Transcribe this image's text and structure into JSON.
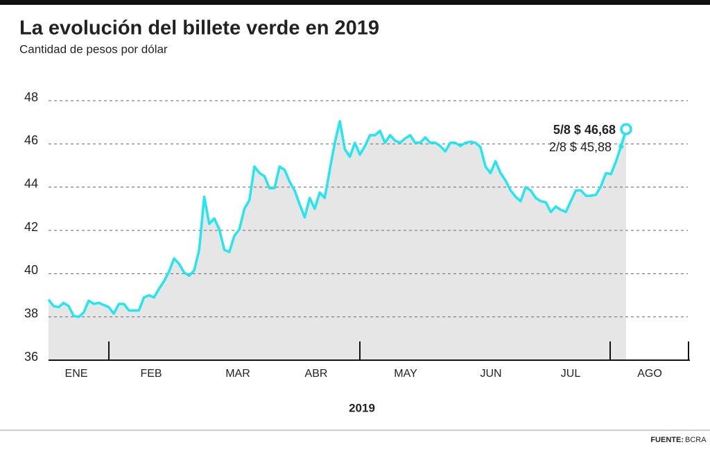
{
  "chart_data": {
    "type": "area-line",
    "title": "La evolución del billete verde en 2019",
    "subtitle": "Cantidad de pesos por dólar",
    "xlabel": "2019",
    "month_labels": [
      "ENE",
      "FEB",
      "MAR",
      "ABR",
      "MAY",
      "JUN",
      "JUL",
      "AGO"
    ],
    "color": "#22e6f0",
    "area_color": "#e6e6e6",
    "ylim": [
      36,
      48
    ],
    "yticks": [
      36,
      38,
      40,
      42,
      44,
      46,
      48
    ],
    "grid": true,
    "values": [
      38.8,
      38.5,
      38.45,
      38.65,
      38.5,
      38.05,
      38.0,
      38.2,
      38.75,
      38.6,
      38.65,
      38.55,
      38.45,
      38.15,
      38.6,
      38.6,
      38.3,
      38.3,
      38.3,
      38.9,
      39.0,
      38.9,
      39.3,
      39.65,
      40.1,
      40.7,
      40.45,
      40.05,
      39.9,
      40.15,
      41.1,
      43.55,
      42.3,
      42.55,
      42.05,
      41.1,
      41.0,
      41.75,
      42.05,
      43.0,
      43.4,
      44.95,
      44.65,
      44.5,
      43.95,
      43.95,
      44.95,
      44.8,
      44.25,
      43.85,
      43.2,
      42.6,
      43.5,
      43.0,
      43.75,
      43.5,
      44.8,
      46.05,
      47.05,
      45.75,
      45.4,
      46.05,
      45.5,
      45.9,
      46.4,
      46.4,
      46.6,
      46.05,
      46.4,
      46.15,
      46.05,
      46.25,
      46.4,
      46.05,
      46.05,
      46.3,
      46.05,
      46.05,
      45.9,
      45.65,
      46.05,
      46.05,
      45.9,
      46.05,
      46.1,
      46.05,
      45.85,
      44.95,
      44.65,
      45.2,
      44.65,
      44.3,
      43.85,
      43.55,
      43.35,
      44.0,
      43.85,
      43.5,
      43.35,
      43.3,
      42.85,
      43.1,
      42.95,
      42.85,
      43.35,
      43.85,
      43.85,
      43.6,
      43.6,
      43.65,
      44.05,
      44.65,
      44.6,
      45.2,
      45.88,
      46.68
    ],
    "annotations": [
      {
        "label": "5/8 $ 46,68",
        "value": 46.68
      },
      {
        "label": "2/8 $ 45,88",
        "value": 45.88
      }
    ],
    "source_label": "FUENTE:",
    "source": "BCRA"
  }
}
